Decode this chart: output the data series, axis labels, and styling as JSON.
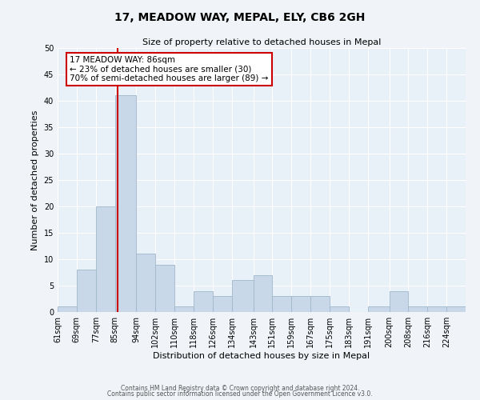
{
  "title": "17, MEADOW WAY, MEPAL, ELY, CB6 2GH",
  "subtitle": "Size of property relative to detached houses in Mepal",
  "xlabel": "Distribution of detached houses by size in Mepal",
  "ylabel": "Number of detached properties",
  "bin_edges": [
    61,
    69,
    77,
    85,
    94,
    102,
    110,
    118,
    126,
    134,
    143,
    151,
    159,
    167,
    175,
    183,
    191,
    200,
    208,
    216,
    224,
    232
  ],
  "bin_labels": [
    "61sqm",
    "69sqm",
    "77sqm",
    "85sqm",
    "94sqm",
    "102sqm",
    "110sqm",
    "118sqm",
    "126sqm",
    "134sqm",
    "143sqm",
    "151sqm",
    "159sqm",
    "167sqm",
    "175sqm",
    "183sqm",
    "191sqm",
    "200sqm",
    "208sqm",
    "216sqm",
    "224sqm"
  ],
  "counts": [
    1,
    8,
    20,
    41,
    11,
    9,
    1,
    4,
    3,
    6,
    7,
    3,
    3,
    3,
    1,
    0,
    1,
    4,
    1,
    1,
    1
  ],
  "bar_color": "#c8d8e8",
  "bar_edge_color": "#a0b8cc",
  "property_value": 86,
  "red_line_color": "#cc0000",
  "annotation_line1": "17 MEADOW WAY: 86sqm",
  "annotation_line2": "← 23% of detached houses are smaller (30)",
  "annotation_line3": "70% of semi-detached houses are larger (89) →",
  "annotation_box_color": "#ffffff",
  "annotation_box_edge_color": "#cc0000",
  "ylim": [
    0,
    50
  ],
  "yticks": [
    0,
    5,
    10,
    15,
    20,
    25,
    30,
    35,
    40,
    45,
    50
  ],
  "background_color": "#e8f0f8",
  "fig_facecolor": "#f0f4f8",
  "footer1": "Contains HM Land Registry data © Crown copyright and database right 2024.",
  "footer2": "Contains public sector information licensed under the Open Government Licence v3.0.",
  "title_fontsize": 10,
  "subtitle_fontsize": 8,
  "ylabel_fontsize": 8,
  "xlabel_fontsize": 8,
  "tick_fontsize": 7,
  "annotation_fontsize": 7.5,
  "footer_fontsize": 5.5
}
